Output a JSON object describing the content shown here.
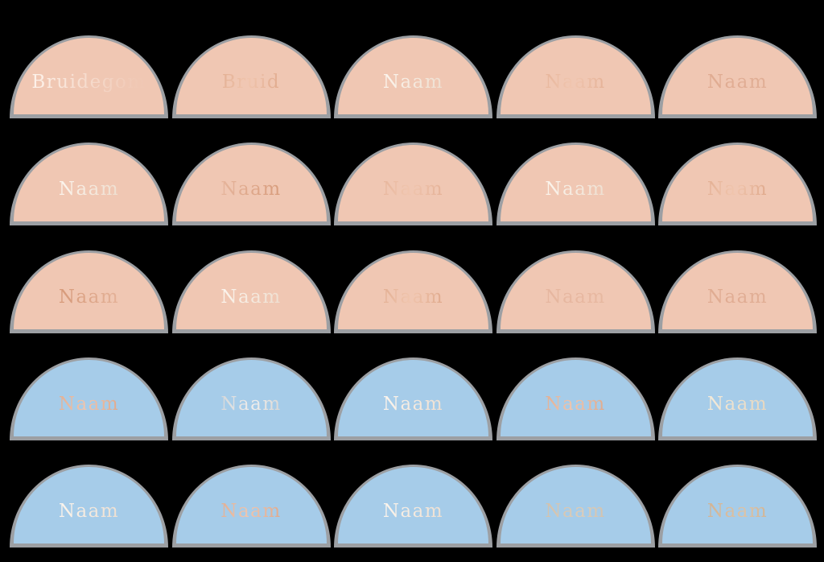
{
  "page": {
    "background": "#000000"
  },
  "sheet": {
    "rows": 5,
    "cols": 5,
    "colors": {
      "peach": "#f0c7b3",
      "blue": "#a6cce9",
      "edge_silver": "#b7bbbf",
      "foil_copper": "#d59978",
      "foil_white": "#fffaf4",
      "foil_silver": "#d9dadc",
      "foil_tan": "#cbbba8"
    },
    "cards": [
      {
        "label": "Bruidegom",
        "color": "peach",
        "foil": "white-fade-right"
      },
      {
        "label": "Bruid",
        "color": "peach",
        "foil": "copper"
      },
      {
        "label": "Naam",
        "color": "peach",
        "foil": "white"
      },
      {
        "label": "Naam",
        "color": "peach",
        "foil": "copper-muted"
      },
      {
        "label": "Naam",
        "color": "peach",
        "foil": "faint-2"
      },
      {
        "label": "Naam",
        "color": "peach",
        "foil": "white"
      },
      {
        "label": "Naam",
        "color": "peach",
        "foil": "copper-fade-left"
      },
      {
        "label": "Naam",
        "color": "peach",
        "foil": "copper-muted"
      },
      {
        "label": "Naam",
        "color": "peach",
        "foil": "white"
      },
      {
        "label": "Naam",
        "color": "peach",
        "foil": "copper"
      },
      {
        "label": "Naam",
        "color": "peach",
        "foil": "copper-fade-right"
      },
      {
        "label": "Naam",
        "color": "peach",
        "foil": "white"
      },
      {
        "label": "Naam",
        "color": "peach",
        "foil": "copper"
      },
      {
        "label": "Naam",
        "color": "peach",
        "foil": "faint"
      },
      {
        "label": "Naam",
        "color": "peach",
        "foil": "faint-2"
      },
      {
        "label": "Naam",
        "color": "blue",
        "foil": "copper"
      },
      {
        "label": "Naam",
        "color": "blue",
        "foil": "silver"
      },
      {
        "label": "Naam",
        "color": "blue",
        "foil": "white"
      },
      {
        "label": "Naam",
        "color": "blue",
        "foil": "copper"
      },
      {
        "label": "Naam",
        "color": "blue",
        "foil": "cream"
      },
      {
        "label": "Naam",
        "color": "blue",
        "foil": "white"
      },
      {
        "label": "Naam",
        "color": "blue",
        "foil": "copper"
      },
      {
        "label": "Naam",
        "color": "blue",
        "foil": "white"
      },
      {
        "label": "Naam",
        "color": "blue",
        "foil": "tan"
      },
      {
        "label": "Naam",
        "color": "blue",
        "foil": "copper-tan"
      }
    ]
  }
}
